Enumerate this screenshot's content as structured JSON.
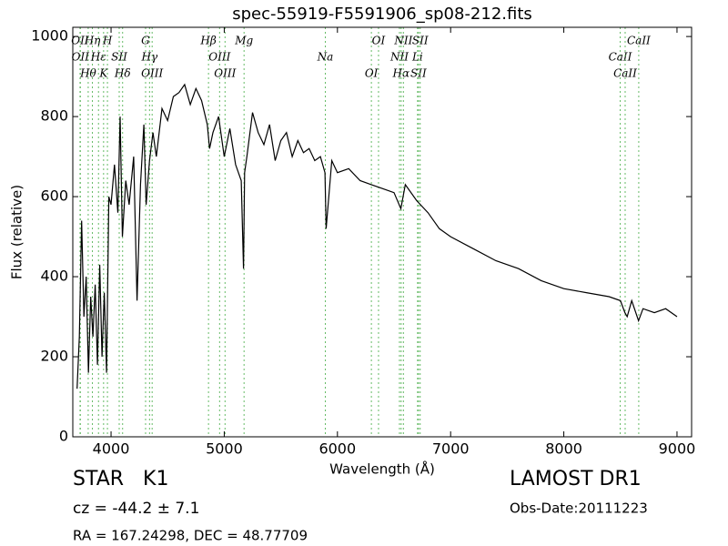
{
  "chart_data": {
    "type": "line",
    "title": "spec-55919-F5591906_sp08-212.fits",
    "xlabel": "Wavelength (Å)",
    "ylabel": "Flux (relative)",
    "xlim": [
      3662,
      9129
    ],
    "ylim": [
      0,
      1023
    ],
    "xticks": [
      4000,
      5000,
      6000,
      7000,
      8000,
      9000
    ],
    "yticks": [
      0,
      200,
      400,
      600,
      800,
      1000
    ],
    "x": [
      3700,
      3720,
      3740,
      3760,
      3780,
      3800,
      3820,
      3840,
      3860,
      3880,
      3900,
      3920,
      3940,
      3960,
      3980,
      4000,
      4030,
      4060,
      4080,
      4100,
      4130,
      4160,
      4200,
      4230,
      4260,
      4290,
      4310,
      4340,
      4370,
      4400,
      4450,
      4500,
      4550,
      4600,
      4650,
      4700,
      4750,
      4800,
      4850,
      4870,
      4900,
      4950,
      5000,
      5050,
      5100,
      5150,
      5170,
      5180,
      5200,
      5250,
      5300,
      5350,
      5400,
      5450,
      5500,
      5550,
      5600,
      5650,
      5700,
      5750,
      5800,
      5850,
      5890,
      5900,
      5950,
      6000,
      6100,
      6200,
      6300,
      6400,
      6500,
      6560,
      6600,
      6700,
      6800,
      6900,
      7000,
      7200,
      7400,
      7600,
      7800,
      8000,
      8200,
      8400,
      8500,
      8540,
      8560,
      8600,
      8660,
      8700,
      8800,
      8900,
      9000
    ],
    "series": [
      {
        "color": "#000000",
        "values": [
          120,
          250,
          540,
          300,
          400,
          160,
          350,
          250,
          380,
          180,
          430,
          200,
          360,
          160,
          600,
          580,
          680,
          560,
          800,
          500,
          640,
          580,
          700,
          340,
          630,
          780,
          580,
          690,
          760,
          700,
          820,
          790,
          850,
          860,
          880,
          830,
          870,
          840,
          780,
          720,
          760,
          800,
          700,
          770,
          680,
          640,
          420,
          660,
          700,
          810,
          760,
          730,
          780,
          690,
          740,
          760,
          700,
          740,
          710,
          720,
          690,
          700,
          660,
          520,
          690,
          660,
          670,
          640,
          630,
          620,
          610,
          570,
          630,
          590,
          560,
          520,
          500,
          470,
          440,
          420,
          390,
          370,
          360,
          350,
          340,
          310,
          300,
          340,
          290,
          320,
          310,
          320,
          300
        ]
      }
    ],
    "line_color": "#66bb66",
    "spectral_lines": [
      {
        "wavelength": 3726,
        "label": "OII"
      },
      {
        "wavelength": 3729,
        "label": "OII"
      },
      {
        "wavelength": 3798,
        "label": "Hθ"
      },
      {
        "wavelength": 3835,
        "label": "Hη"
      },
      {
        "wavelength": 3889,
        "label": "Hε"
      },
      {
        "wavelength": 3934,
        "label": "K"
      },
      {
        "wavelength": 3968,
        "label": "H"
      },
      {
        "wavelength": 4072,
        "label": "SII"
      },
      {
        "wavelength": 4102,
        "label": "Hδ"
      },
      {
        "wavelength": 4305,
        "label": "G"
      },
      {
        "wavelength": 4340,
        "label": "Hγ"
      },
      {
        "wavelength": 4363,
        "label": "OIII"
      },
      {
        "wavelength": 4861,
        "label": "Hβ"
      },
      {
        "wavelength": 4959,
        "label": "OIII"
      },
      {
        "wavelength": 5007,
        "label": "OIII"
      },
      {
        "wavelength": 5175,
        "label": "Mg"
      },
      {
        "wavelength": 5893,
        "label": "Na"
      },
      {
        "wavelength": 6300,
        "label": "OI"
      },
      {
        "wavelength": 6363,
        "label": "OI"
      },
      {
        "wavelength": 6548,
        "label": "NII"
      },
      {
        "wavelength": 6563,
        "label": "Hα"
      },
      {
        "wavelength": 6583,
        "label": "NII"
      },
      {
        "wavelength": 6708,
        "label": "Li"
      },
      {
        "wavelength": 6716,
        "label": "SII"
      },
      {
        "wavelength": 6731,
        "label": "SII"
      },
      {
        "wavelength": 8498,
        "label": "CaII"
      },
      {
        "wavelength": 8542,
        "label": "CaII"
      },
      {
        "wavelength": 8662,
        "label": "CaII"
      }
    ],
    "annotations": {
      "class": "STAR   K1",
      "cz": "cz = -44.2 ± 7.1",
      "coords": "RA = 167.24298, DEC = 48.77709",
      "survey": "LAMOST DR1",
      "date": "Obs-Date:20111223"
    }
  }
}
